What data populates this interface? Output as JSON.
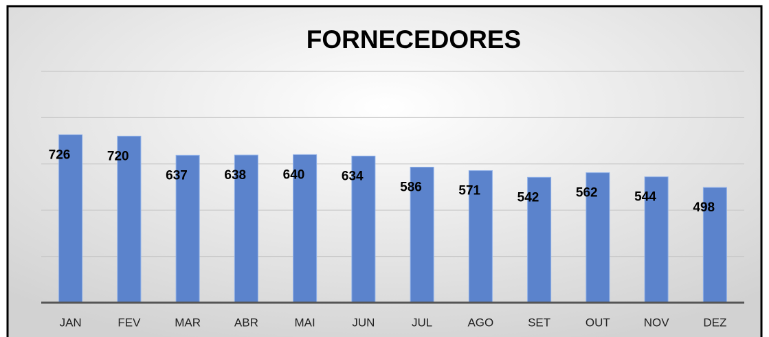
{
  "chart_data": {
    "type": "bar",
    "title": "FORNECEDORES",
    "categories": [
      "JAN",
      "FEV",
      "MAR",
      "ABR",
      "MAI",
      "JUN",
      "JUL",
      "AGO",
      "SET",
      "OUT",
      "NOV",
      "DEZ"
    ],
    "values": [
      726,
      720,
      637,
      638,
      640,
      634,
      586,
      571,
      542,
      562,
      544,
      498
    ],
    "color": "#5b83cc",
    "ylim": [
      0,
      1000
    ],
    "yticks": [
      0,
      200,
      400,
      600,
      800,
      1000
    ],
    "grid": true
  }
}
